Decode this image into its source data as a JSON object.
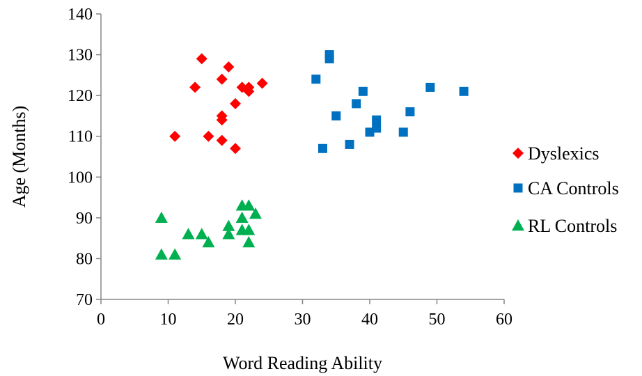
{
  "chart_data": {
    "type": "scatter",
    "title": "",
    "xlabel": "Word Reading Ability",
    "ylabel": "Age (Months)",
    "xlim": [
      0,
      60
    ],
    "ylim": [
      70,
      140
    ],
    "x_ticks": [
      0,
      10,
      20,
      30,
      40,
      50,
      60
    ],
    "y_ticks": [
      70,
      80,
      90,
      100,
      110,
      120,
      130,
      140
    ],
    "grid": false,
    "legend_position": "right",
    "series": [
      {
        "name": "Dyslexics",
        "marker": "diamond",
        "color": "#ff0000",
        "points": [
          {
            "x": 15,
            "y": 129
          },
          {
            "x": 19,
            "y": 127
          },
          {
            "x": 14,
            "y": 122
          },
          {
            "x": 18,
            "y": 124
          },
          {
            "x": 21,
            "y": 122
          },
          {
            "x": 22,
            "y": 122
          },
          {
            "x": 22,
            "y": 121
          },
          {
            "x": 24,
            "y": 123
          },
          {
            "x": 20,
            "y": 118
          },
          {
            "x": 18,
            "y": 115
          },
          {
            "x": 18,
            "y": 114
          },
          {
            "x": 11,
            "y": 110
          },
          {
            "x": 16,
            "y": 110
          },
          {
            "x": 18,
            "y": 109
          },
          {
            "x": 20,
            "y": 107
          }
        ]
      },
      {
        "name": "CA Controls",
        "marker": "square",
        "color": "#0070c0",
        "points": [
          {
            "x": 34,
            "y": 130
          },
          {
            "x": 34,
            "y": 129
          },
          {
            "x": 32,
            "y": 124
          },
          {
            "x": 39,
            "y": 121
          },
          {
            "x": 38,
            "y": 118
          },
          {
            "x": 35,
            "y": 115
          },
          {
            "x": 49,
            "y": 122
          },
          {
            "x": 54,
            "y": 121
          },
          {
            "x": 46,
            "y": 116
          },
          {
            "x": 41,
            "y": 114
          },
          {
            "x": 41,
            "y": 112
          },
          {
            "x": 40,
            "y": 111
          },
          {
            "x": 45,
            "y": 111
          },
          {
            "x": 37,
            "y": 108
          },
          {
            "x": 33,
            "y": 107
          }
        ]
      },
      {
        "name": "RL Controls",
        "marker": "triangle",
        "color": "#00b050",
        "points": [
          {
            "x": 9,
            "y": 90
          },
          {
            "x": 9,
            "y": 81
          },
          {
            "x": 11,
            "y": 81
          },
          {
            "x": 13,
            "y": 86
          },
          {
            "x": 15,
            "y": 86
          },
          {
            "x": 16,
            "y": 84
          },
          {
            "x": 19,
            "y": 88
          },
          {
            "x": 19,
            "y": 86
          },
          {
            "x": 21,
            "y": 93
          },
          {
            "x": 22,
            "y": 93
          },
          {
            "x": 21,
            "y": 90
          },
          {
            "x": 21,
            "y": 87
          },
          {
            "x": 22,
            "y": 87
          },
          {
            "x": 23,
            "y": 91
          },
          {
            "x": 22,
            "y": 84
          }
        ]
      }
    ]
  }
}
